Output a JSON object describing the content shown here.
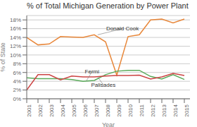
{
  "chart_data": {
    "type": "line",
    "title": "% of Total Michigan Generation by Power Plant",
    "xlabel": "Year",
    "ylabel": "% of State",
    "x": [
      2001,
      2002,
      2003,
      2004,
      2005,
      2006,
      2007,
      2008,
      2009,
      2010,
      2011,
      2012,
      2013,
      2014,
      2015
    ],
    "xlim": [
      2001,
      2015.5
    ],
    "xticks": [
      2001,
      2002,
      2003,
      2004,
      2005,
      2006,
      2007,
      2008,
      2009,
      2010,
      2011,
      2012,
      2013,
      2014,
      2015
    ],
    "ylim": [
      0,
      19
    ],
    "yticks": [
      {
        "value": 0,
        "label": "0%"
      },
      {
        "value": 2,
        "label": "2%"
      },
      {
        "value": 4,
        "label": "4%"
      },
      {
        "value": 6,
        "label": "6%"
      },
      {
        "value": 8,
        "label": "8%"
      },
      {
        "value": 10,
        "label": "10%"
      },
      {
        "value": 12,
        "label": "12%"
      },
      {
        "value": 14,
        "label": "14%"
      },
      {
        "value": 16,
        "label": "16%"
      },
      {
        "value": 18,
        "label": "18%"
      }
    ],
    "grid": "y",
    "series": [
      {
        "name": "Donald Cook",
        "color": "#e8873a",
        "values": [
          14.0,
          12.3,
          12.5,
          14.2,
          14.1,
          14.0,
          14.6,
          13.0,
          5.4,
          14.2,
          14.6,
          18.0,
          18.2,
          17.3,
          18.2
        ]
      },
      {
        "name": "Fermi",
        "color": "#5aaa5a",
        "values": [
          4.8,
          4.6,
          4.6,
          4.6,
          4.4,
          4.0,
          4.2,
          5.5,
          6.3,
          6.5,
          6.5,
          5.1,
          4.5,
          5.5,
          4.4
        ]
      },
      {
        "name": "Palisades",
        "color": "#cc4444",
        "values": [
          2.0,
          5.5,
          5.5,
          4.3,
          5.2,
          5.0,
          5.0,
          5.2,
          5.3,
          5.3,
          5.4,
          4.5,
          5.0,
          5.8,
          5.3
        ]
      }
    ],
    "annotations": [
      {
        "text": "Donald Cook",
        "x": 2007.3,
        "y": 14.6,
        "text_x": 2009.5,
        "text_y": 16.0
      },
      {
        "text": "Fermi",
        "x": 2006.3,
        "y": 4.1,
        "text_x": 2006.8,
        "text_y": 6.2
      },
      {
        "text": "Palisades",
        "x": 2007.3,
        "y": 5.0,
        "text_x": 2007.8,
        "text_y": 3.2
      }
    ]
  }
}
